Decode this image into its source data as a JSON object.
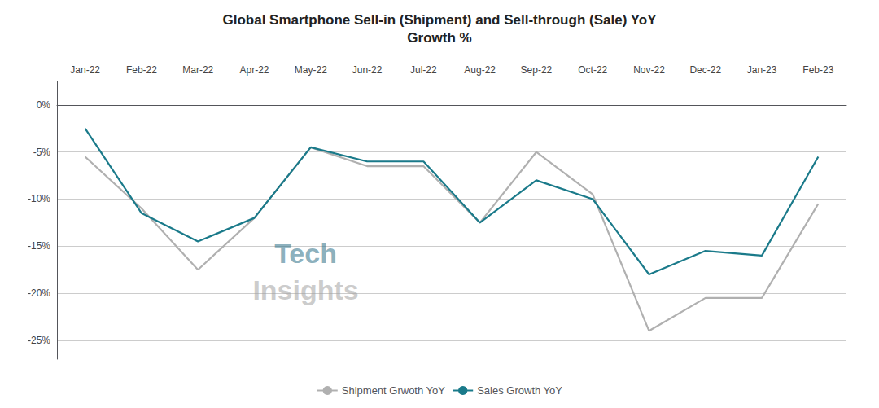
{
  "chart_data": {
    "type": "line",
    "title": "Global Smartphone Sell-in (Shipment) and Sell-through (Sale) YoY\nGrowth %",
    "categories": [
      "Jan-22",
      "Feb-22",
      "Mar-22",
      "Apr-22",
      "May-22",
      "Jun-22",
      "Jul-22",
      "Aug-22",
      "Sep-22",
      "Oct-22",
      "Nov-22",
      "Dec-22",
      "Jan-23",
      "Feb-23"
    ],
    "series": [
      {
        "name": "Shipment Grwoth YoY",
        "color": "#b0b0b0",
        "values": [
          -5.5,
          -11.0,
          -17.5,
          -12.0,
          -4.5,
          -6.5,
          -6.5,
          -12.5,
          -5.0,
          -9.5,
          -24.0,
          -20.5,
          -20.5,
          -10.5
        ]
      },
      {
        "name": "Sales Growth YoY",
        "color": "#1a7a8a",
        "values": [
          -2.5,
          -11.5,
          -14.5,
          -12.0,
          -4.5,
          -6.0,
          -6.0,
          -12.5,
          -8.0,
          -10.0,
          -18.0,
          -15.5,
          -16.0,
          -5.5
        ]
      }
    ],
    "ylim": [
      -27,
      2.5
    ],
    "yticks": [
      {
        "value": 0,
        "label": "0%"
      },
      {
        "value": -5,
        "label": "-5%"
      },
      {
        "value": -10,
        "label": "-10%"
      },
      {
        "value": -15,
        "label": "-15%"
      },
      {
        "value": -20,
        "label": "-20%"
      },
      {
        "value": -25,
        "label": "-25%"
      }
    ],
    "grid": true,
    "legend": "bottom",
    "annotations": [
      {
        "text": "Tech",
        "color": "#2a6e85"
      },
      {
        "text": "Insights",
        "color": "#a0a0a0"
      }
    ]
  }
}
